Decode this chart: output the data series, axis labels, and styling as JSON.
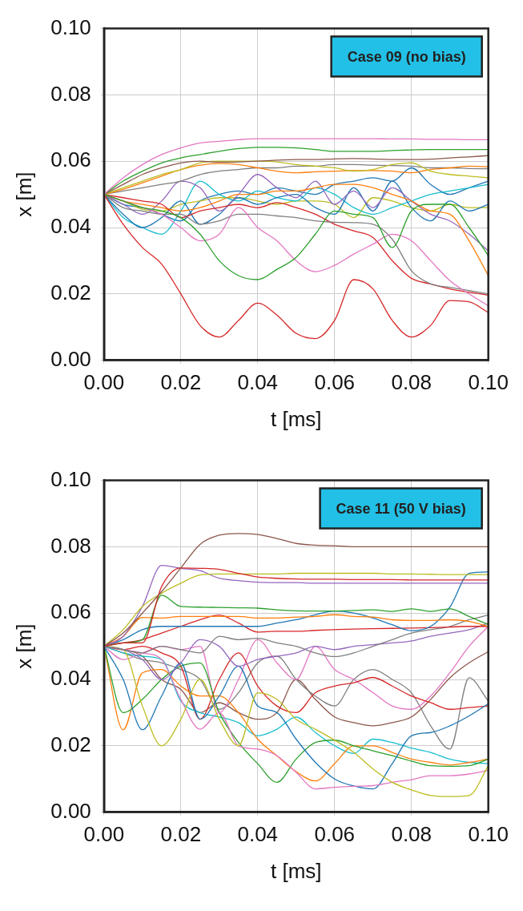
{
  "chart_data": [
    {
      "type": "line",
      "annotations": [
        "Case 09 (no bias)"
      ],
      "xlabel": "t [ms]",
      "ylabel": "x [m]",
      "grid": true,
      "xlim": [
        0,
        0.1
      ],
      "ylim": [
        0,
        0.1
      ],
      "xticks": [
        {
          "value": 0,
          "label": "0.00"
        },
        {
          "value": 0.02,
          "label": "0.02"
        },
        {
          "value": 0.04,
          "label": "0.04"
        },
        {
          "value": 0.06,
          "label": "0.06"
        },
        {
          "value": 0.08,
          "label": "0.08"
        },
        {
          "value": 0.1,
          "label": "0.10"
        }
      ],
      "yticks": [
        {
          "value": 0,
          "label": "0.00"
        },
        {
          "value": 0.02,
          "label": "0.02"
        },
        {
          "value": 0.04,
          "label": "0.04"
        },
        {
          "value": 0.06,
          "label": "0.06"
        },
        {
          "value": 0.08,
          "label": "0.08"
        },
        {
          "value": 0.1,
          "label": "0.10"
        }
      ],
      "x": [
        0,
        0.005,
        0.01,
        0.015,
        0.02,
        0.025,
        0.03,
        0.035,
        0.04,
        0.045,
        0.05,
        0.055,
        0.06,
        0.065,
        0.07,
        0.075,
        0.08,
        0.085,
        0.09,
        0.095,
        0.1
      ],
      "series": [
        {
          "color": "#e377c2",
          "values": [
            0.05,
            0.055,
            0.059,
            0.062,
            0.064,
            0.0655,
            0.066,
            0.0665,
            0.0668,
            0.0668,
            0.0668,
            0.0668,
            0.0668,
            0.0668,
            0.0668,
            0.0667,
            0.0667,
            0.0666,
            0.0666,
            0.0665,
            0.0665
          ]
        },
        {
          "color": "#2ca02c",
          "values": [
            0.05,
            0.054,
            0.057,
            0.0595,
            0.061,
            0.062,
            0.063,
            0.0638,
            0.0642,
            0.0642,
            0.064,
            0.0635,
            0.063,
            0.063,
            0.063,
            0.0632,
            0.0634,
            0.0635,
            0.0635,
            0.0635,
            0.0635
          ]
        },
        {
          "color": "#8c564b",
          "values": [
            0.05,
            0.053,
            0.056,
            0.058,
            0.0595,
            0.06,
            0.0597,
            0.0598,
            0.06,
            0.0603,
            0.0605,
            0.0605,
            0.0607,
            0.0608,
            0.0607,
            0.0605,
            0.0605,
            0.0606,
            0.061,
            0.0613,
            0.0617
          ]
        },
        {
          "color": "#bcbd22",
          "values": [
            0.05,
            0.052,
            0.054,
            0.056,
            0.0575,
            0.0595,
            0.06,
            0.06,
            0.06,
            0.0598,
            0.059,
            0.0585,
            0.058,
            0.057,
            0.0575,
            0.059,
            0.0595,
            0.057,
            0.056,
            0.0555,
            0.055
          ]
        },
        {
          "color": "#ff7f0e",
          "values": [
            0.05,
            0.0515,
            0.0535,
            0.0555,
            0.0575,
            0.0588,
            0.0593,
            0.059,
            0.058,
            0.057,
            0.0565,
            0.0568,
            0.057,
            0.0572,
            0.0572,
            0.057,
            0.0565,
            0.0575,
            0.058,
            0.0585,
            0.0583
          ]
        },
        {
          "color": "#7f7f7f",
          "values": [
            0.05,
            0.051,
            0.052,
            0.053,
            0.054,
            0.056,
            0.057,
            0.0575,
            0.058,
            0.058,
            0.0585,
            0.0585,
            0.059,
            0.059,
            0.0588,
            0.0587,
            0.0585,
            0.058,
            0.058,
            0.0578,
            0.0577
          ]
        },
        {
          "color": "#d62728",
          "values": [
            0.05,
            0.041,
            0.034,
            0.029,
            0.02,
            0.0105,
            0.007,
            0.012,
            0.0172,
            0.0136,
            0.0081,
            0.0065,
            0.012,
            0.0243,
            0.0215,
            0.012,
            0.007,
            0.0105,
            0.018,
            0.0176,
            0.0144
          ]
        },
        {
          "color": "#2ca02c",
          "values": [
            0.05,
            0.048,
            0.046,
            0.045,
            0.043,
            0.038,
            0.03,
            0.0255,
            0.0243,
            0.0274,
            0.031,
            0.038,
            0.045,
            0.044,
            0.043,
            0.034,
            0.045,
            0.047,
            0.047,
            0.04,
            0.0315
          ]
        },
        {
          "color": "#e377c2",
          "values": [
            0.05,
            0.048,
            0.046,
            0.044,
            0.04,
            0.036,
            0.038,
            0.046,
            0.04,
            0.036,
            0.03,
            0.0267,
            0.0286,
            0.032,
            0.035,
            0.038,
            0.036,
            0.03,
            0.024,
            0.02,
            0.0164
          ]
        },
        {
          "color": "#7f7f7f",
          "values": [
            0.05,
            0.046,
            0.045,
            0.044,
            0.044,
            0.041,
            0.042,
            0.044,
            0.044,
            0.0435,
            0.043,
            0.042,
            0.0416,
            0.0415,
            0.041,
            0.0365,
            0.027,
            0.023,
            0.022,
            0.021,
            0.02
          ]
        },
        {
          "color": "#d62728",
          "values": [
            0.05,
            0.049,
            0.048,
            0.047,
            0.043,
            0.045,
            0.046,
            0.047,
            0.046,
            0.0475,
            0.046,
            0.044,
            0.041,
            0.039,
            0.037,
            0.03,
            0.0247,
            0.023,
            0.0215,
            0.0205,
            0.0196
          ]
        },
        {
          "color": "#ff7f0e",
          "values": [
            0.05,
            0.048,
            0.047,
            0.046,
            0.045,
            0.046,
            0.048,
            0.05,
            0.05,
            0.051,
            0.051,
            0.052,
            0.053,
            0.053,
            0.052,
            0.05,
            0.048,
            0.045,
            0.044,
            0.036,
            0.0255
          ]
        },
        {
          "color": "#9467bd",
          "values": [
            0.05,
            0.047,
            0.044,
            0.048,
            0.054,
            0.052,
            0.045,
            0.05,
            0.056,
            0.052,
            0.049,
            0.054,
            0.047,
            0.051,
            0.046,
            0.052,
            0.048,
            0.044,
            0.042,
            0.038,
            0.033
          ]
        },
        {
          "color": "#1f77b4",
          "values": [
            0.05,
            0.044,
            0.04,
            0.043,
            0.048,
            0.041,
            0.044,
            0.049,
            0.047,
            0.049,
            0.05,
            0.046,
            0.044,
            0.052,
            0.045,
            0.054,
            0.046,
            0.042,
            0.048,
            0.045,
            0.047
          ]
        },
        {
          "color": "#17becf",
          "values": [
            0.05,
            0.043,
            0.04,
            0.038,
            0.045,
            0.054,
            0.05,
            0.048,
            0.051,
            0.049,
            0.048,
            0.052,
            0.05,
            0.046,
            0.044,
            0.046,
            0.048,
            0.05,
            0.051,
            0.052,
            0.053
          ]
        },
        {
          "color": "#bcbd22",
          "values": [
            0.05,
            0.048,
            0.0455,
            0.045,
            0.047,
            0.048,
            0.049,
            0.049,
            0.048,
            0.047,
            0.048,
            0.048,
            0.047,
            0.043,
            0.049,
            0.048,
            0.046,
            0.045,
            0.047,
            0.046,
            0.046
          ]
        },
        {
          "color": "#1f77b4",
          "values": [
            0.05,
            0.047,
            0.046,
            0.044,
            0.042,
            0.048,
            0.05,
            0.051,
            0.05,
            0.052,
            0.051,
            0.05,
            0.053,
            0.054,
            0.055,
            0.054,
            0.058,
            0.053,
            0.05,
            0.052,
            0.054
          ]
        }
      ]
    },
    {
      "type": "line",
      "annotations": [
        "Case 11 (50 V bias)"
      ],
      "xlabel": "t [ms]",
      "ylabel": "x [m]",
      "grid": true,
      "xlim": [
        0,
        0.1
      ],
      "ylim": [
        0,
        0.1
      ],
      "xticks": [
        {
          "value": 0,
          "label": "0.00"
        },
        {
          "value": 0.02,
          "label": "0.02"
        },
        {
          "value": 0.04,
          "label": "0.04"
        },
        {
          "value": 0.06,
          "label": "0.06"
        },
        {
          "value": 0.08,
          "label": "0.08"
        },
        {
          "value": 0.1,
          "label": "0.10"
        }
      ],
      "yticks": [
        {
          "value": 0,
          "label": "0.00"
        },
        {
          "value": 0.02,
          "label": "0.02"
        },
        {
          "value": 0.04,
          "label": "0.04"
        },
        {
          "value": 0.06,
          "label": "0.06"
        },
        {
          "value": 0.08,
          "label": "0.08"
        },
        {
          "value": 0.1,
          "label": "0.10"
        }
      ],
      "x": [
        0,
        0.005,
        0.01,
        0.015,
        0.02,
        0.025,
        0.03,
        0.035,
        0.04,
        0.045,
        0.05,
        0.055,
        0.06,
        0.065,
        0.07,
        0.075,
        0.08,
        0.085,
        0.09,
        0.095,
        0.1
      ],
      "series": [
        {
          "color": "#8c564b",
          "values": [
            0.05,
            0.054,
            0.06,
            0.0665,
            0.0736,
            0.0807,
            0.0835,
            0.084,
            0.0837,
            0.0825,
            0.081,
            0.0805,
            0.0803,
            0.08,
            0.08,
            0.08,
            0.08,
            0.08,
            0.08,
            0.08,
            0.08
          ]
        },
        {
          "color": "#d62728",
          "values": [
            0.05,
            0.051,
            0.051,
            0.068,
            0.0736,
            0.0735,
            0.0732,
            0.072,
            0.0709,
            0.0705,
            0.0703,
            0.0702,
            0.0702,
            0.0701,
            0.0701,
            0.0701,
            0.07,
            0.07,
            0.07,
            0.07,
            0.07
          ]
        },
        {
          "color": "#bcbd22",
          "values": [
            0.05,
            0.055,
            0.062,
            0.066,
            0.069,
            0.0715,
            0.0718,
            0.0718,
            0.0718,
            0.0718,
            0.072,
            0.072,
            0.072,
            0.072,
            0.072,
            0.0718,
            0.0718,
            0.0717,
            0.0716,
            0.0716,
            0.0716
          ]
        },
        {
          "color": "#9467bd",
          "values": [
            0.05,
            0.053,
            0.062,
            0.0744,
            0.0735,
            0.0728,
            0.0705,
            0.0698,
            0.0693,
            0.0692,
            0.0692,
            0.069,
            0.069,
            0.069,
            0.069,
            0.069,
            0.069,
            0.069,
            0.069,
            0.069,
            0.069
          ]
        },
        {
          "color": "#2ca02c",
          "values": [
            0.05,
            0.051,
            0.052,
            0.0654,
            0.062,
            0.0618,
            0.0617,
            0.0616,
            0.0615,
            0.061,
            0.0607,
            0.0606,
            0.0606,
            0.0608,
            0.061,
            0.0605,
            0.0613,
            0.0605,
            0.0613,
            0.059,
            0.0565
          ]
        },
        {
          "color": "#ff7f0e",
          "values": [
            0.05,
            0.053,
            0.0587,
            0.0585,
            0.059,
            0.059,
            0.059,
            0.059,
            0.0585,
            0.0585,
            0.0588,
            0.059,
            0.0595,
            0.059,
            0.0588,
            0.058,
            0.0578,
            0.0578,
            0.058,
            0.0575,
            0.056
          ]
        },
        {
          "color": "#1f77b4",
          "values": [
            0.05,
            0.052,
            0.055,
            0.056,
            0.056,
            0.056,
            0.056,
            0.056,
            0.056,
            0.057,
            0.058,
            0.0595,
            0.0606,
            0.06,
            0.0585,
            0.0565,
            0.0547,
            0.056,
            0.0618,
            0.072,
            0.0724
          ]
        },
        {
          "color": "#d62728",
          "values": [
            0.05,
            0.051,
            0.052,
            0.054,
            0.056,
            0.058,
            0.0594,
            0.057,
            0.0543,
            0.0545,
            0.0545,
            0.0548,
            0.055,
            0.0552,
            0.0553,
            0.0554,
            0.0555,
            0.0556,
            0.0558,
            0.056,
            0.056
          ]
        },
        {
          "color": "#7f7f7f",
          "values": [
            0.05,
            0.049,
            0.048,
            0.05,
            0.049,
            0.048,
            0.053,
            0.052,
            0.0524,
            0.051,
            0.05,
            0.048,
            0.0469,
            0.048,
            0.05,
            0.052,
            0.054,
            0.055,
            0.056,
            0.058,
            0.0594
          ]
        },
        {
          "color": "#9467bd",
          "values": [
            0.05,
            0.049,
            0.046,
            0.04,
            0.045,
            0.052,
            0.05,
            0.044,
            0.046,
            0.047,
            0.048,
            0.05,
            0.049,
            0.05,
            0.0505,
            0.051,
            0.0516,
            0.053,
            0.054,
            0.055,
            0.057
          ]
        },
        {
          "color": "#bcbd22",
          "values": [
            0.05,
            0.049,
            0.032,
            0.02,
            0.028,
            0.04,
            0.028,
            0.02,
            0.036,
            0.034,
            0.028,
            0.025,
            0.0217,
            0.018,
            0.013,
            0.009,
            0.0067,
            0.005,
            0.0047,
            0.005,
            0.014
          ]
        },
        {
          "color": "#e377c2",
          "values": [
            0.05,
            0.049,
            0.048,
            0.046,
            0.034,
            0.025,
            0.03,
            0.02,
            0.019,
            0.017,
            0.012,
            0.007,
            0.0075,
            0.0078,
            0.008,
            0.009,
            0.0098,
            0.011,
            0.011,
            0.0115,
            0.0126
          ]
        },
        {
          "color": "#1f77b4",
          "values": [
            0.05,
            0.04,
            0.0248,
            0.035,
            0.045,
            0.028,
            0.035,
            0.044,
            0.032,
            0.03,
            0.022,
            0.015,
            0.01,
            0.0079,
            0.007,
            0.0146,
            0.023,
            0.024,
            0.026,
            0.029,
            0.0327
          ]
        },
        {
          "color": "#2ca02c",
          "values": [
            0.05,
            0.03,
            0.034,
            0.04,
            0.044,
            0.045,
            0.03,
            0.021,
            0.0146,
            0.009,
            0.016,
            0.021,
            0.0217,
            0.02,
            0.0185,
            0.017,
            0.0154,
            0.014,
            0.0138,
            0.014,
            0.016
          ]
        },
        {
          "color": "#ff7f0e",
          "values": [
            0.05,
            0.0248,
            0.042,
            0.043,
            0.038,
            0.035,
            0.035,
            0.03,
            0.022,
            0.017,
            0.0122,
            0.0094,
            0.0146,
            0.02,
            0.02,
            0.018,
            0.016,
            0.015,
            0.0142,
            0.015,
            0.016
          ]
        },
        {
          "color": "#17becf",
          "values": [
            0.05,
            0.048,
            0.047,
            0.046,
            0.0335,
            0.03,
            0.0287,
            0.027,
            0.023,
            0.025,
            0.0287,
            0.024,
            0.02,
            0.0177,
            0.022,
            0.021,
            0.0193,
            0.018,
            0.016,
            0.015,
            0.0146
          ]
        },
        {
          "color": "#d62728",
          "values": [
            0.05,
            0.049,
            0.05,
            0.048,
            0.044,
            0.028,
            0.04,
            0.048,
            0.038,
            0.032,
            0.03,
            0.036,
            0.038,
            0.039,
            0.0406,
            0.038,
            0.035,
            0.033,
            0.031,
            0.0315,
            0.032
          ]
        },
        {
          "color": "#e377c2",
          "values": [
            0.05,
            0.046,
            0.048,
            0.05,
            0.049,
            0.05,
            0.03,
            0.04,
            0.052,
            0.045,
            0.04,
            0.05,
            0.043,
            0.04,
            0.036,
            0.032,
            0.031,
            0.035,
            0.042,
            0.05,
            0.056
          ]
        },
        {
          "color": "#7f7f7f",
          "values": [
            0.05,
            0.048,
            0.046,
            0.045,
            0.043,
            0.04,
            0.031,
            0.036,
            0.045,
            0.047,
            0.04,
            0.035,
            0.032,
            0.04,
            0.043,
            0.04,
            0.036,
            0.026,
            0.019,
            0.0405,
            0.0335
          ]
        },
        {
          "color": "#8c564b",
          "values": [
            0.05,
            0.049,
            0.047,
            0.04,
            0.037,
            0.03,
            0.033,
            0.03,
            0.028,
            0.03,
            0.04,
            0.034,
            0.0287,
            0.027,
            0.026,
            0.027,
            0.0287,
            0.034,
            0.0405,
            0.045,
            0.0484
          ]
        }
      ]
    }
  ]
}
